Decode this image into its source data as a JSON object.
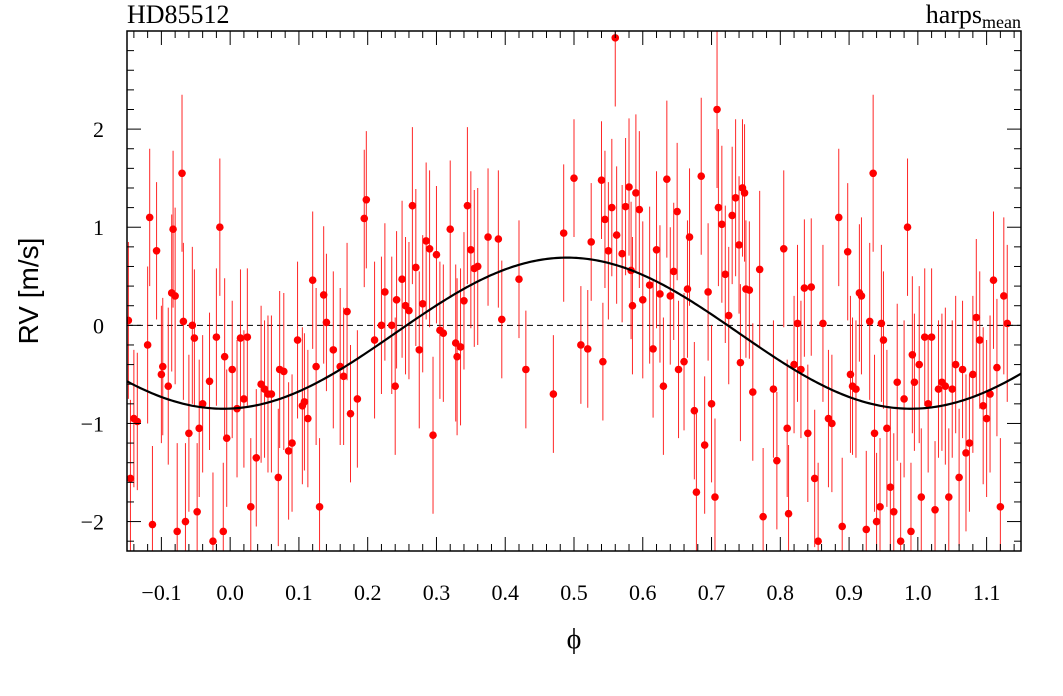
{
  "chart_data": {
    "type": "scatter",
    "title_left": "HD85512",
    "title_right": {
      "main": "harps",
      "sub": "mean"
    },
    "xlabel": "ϕ",
    "ylabel": "RV [m/s]",
    "xlim": [
      -0.15,
      1.15
    ],
    "ylim": [
      -2.3,
      3.0
    ],
    "x_ticks": [
      -0.1,
      0.0,
      0.1,
      0.2,
      0.3,
      0.4,
      0.5,
      0.6,
      0.7,
      0.8,
      0.9,
      1.0,
      1.1
    ],
    "x_tick_labels": [
      "−0.1",
      "0.0",
      "0.1",
      "0.2",
      "0.3",
      "0.4",
      "0.5",
      "0.6",
      "0.7",
      "0.8",
      "0.9",
      "1.0",
      "1.1"
    ],
    "y_ticks": [
      -2,
      -1,
      0,
      1,
      2
    ],
    "y_tick_labels": [
      "−2",
      "−1",
      "0",
      "1",
      "2"
    ],
    "zero_line": 0,
    "grid": false,
    "model": {
      "type": "sinusoid",
      "amplitude": 0.77,
      "offset": -0.08,
      "peak_phase": 0.49,
      "color": "#000000"
    },
    "series": [
      {
        "color": "#ff0000",
        "points": [
          [
            -0.148,
            0.05,
            0.8
          ],
          [
            -0.145,
            -1.56,
            0.8
          ],
          [
            -0.14,
            -0.95,
            0.7
          ],
          [
            -0.135,
            -0.98,
            0.7
          ],
          [
            -0.12,
            -0.2,
            0.8
          ],
          [
            -0.117,
            1.1,
            0.7
          ],
          [
            -0.113,
            -2.03,
            0.8
          ],
          [
            -0.107,
            0.76,
            0.7
          ],
          [
            -0.1,
            -0.5,
            0.7
          ],
          [
            -0.098,
            -0.42,
            0.7
          ],
          [
            -0.09,
            -0.62,
            0.8
          ],
          [
            -0.085,
            0.33,
            0.8
          ],
          [
            -0.083,
            0.98,
            0.8
          ],
          [
            -0.08,
            0.3,
            0.9
          ],
          [
            -0.077,
            -2.1,
            0.9
          ],
          [
            -0.07,
            1.55,
            0.8
          ],
          [
            -0.068,
            0.04,
            0.8
          ],
          [
            -0.065,
            -2.0,
            0.8
          ],
          [
            -0.06,
            -1.1,
            0.8
          ],
          [
            -0.055,
            0.0,
            0.8
          ],
          [
            -0.052,
            -0.13,
            0.7
          ],
          [
            -0.048,
            -1.9,
            0.7
          ],
          [
            -0.045,
            -1.05,
            0.7
          ],
          [
            -0.04,
            -0.8,
            0.7
          ],
          [
            -0.03,
            -0.57,
            0.7
          ],
          [
            -0.025,
            -2.2,
            0.7
          ],
          [
            -0.02,
            -0.12,
            0.7
          ],
          [
            -0.015,
            1.0,
            0.7
          ],
          [
            -0.01,
            -2.1,
            0.7
          ],
          [
            -0.008,
            -0.32,
            0.8
          ],
          [
            -0.005,
            -1.15,
            0.7
          ],
          [
            0.003,
            -0.45,
            0.7
          ],
          [
            0.01,
            -0.85,
            0.7
          ],
          [
            0.015,
            -0.13,
            0.7
          ],
          [
            0.02,
            -0.75,
            0.7
          ],
          [
            0.025,
            -0.12,
            0.7
          ],
          [
            0.03,
            -1.85,
            0.7
          ],
          [
            0.038,
            -1.35,
            0.7
          ],
          [
            0.045,
            -0.6,
            0.8
          ],
          [
            0.05,
            -0.65,
            0.7
          ],
          [
            0.055,
            -0.7,
            0.8
          ],
          [
            0.06,
            -0.7,
            0.8
          ],
          [
            0.07,
            -1.55,
            0.7
          ],
          [
            0.072,
            -0.45,
            0.8
          ],
          [
            0.078,
            -0.47,
            0.8
          ],
          [
            0.085,
            -1.28,
            0.7
          ],
          [
            0.09,
            -1.2,
            0.7
          ],
          [
            0.098,
            -0.15,
            0.8
          ],
          [
            0.105,
            -0.82,
            0.8
          ],
          [
            0.108,
            -0.78,
            0.7
          ],
          [
            0.113,
            -0.95,
            0.7
          ],
          [
            0.12,
            0.46,
            0.7
          ],
          [
            0.125,
            -0.42,
            0.8
          ],
          [
            0.13,
            -1.85,
            0.7
          ],
          [
            0.136,
            0.31,
            0.7
          ],
          [
            0.14,
            0.03,
            0.7
          ],
          [
            0.15,
            -0.25,
            0.8
          ],
          [
            0.16,
            -0.42,
            0.8
          ],
          [
            0.165,
            -0.52,
            0.7
          ],
          [
            0.17,
            0.14,
            0.7
          ],
          [
            0.175,
            -0.9,
            0.7
          ],
          [
            0.185,
            -0.75,
            0.7
          ],
          [
            0.195,
            1.09,
            0.7
          ],
          [
            0.198,
            1.28,
            0.7
          ],
          [
            0.21,
            -0.15,
            0.8
          ],
          [
            0.22,
            0.0,
            0.7
          ],
          [
            0.225,
            0.34,
            0.7
          ],
          [
            0.235,
            0.0,
            0.7
          ],
          [
            0.24,
            -0.62,
            0.7
          ],
          [
            0.242,
            0.26,
            0.7
          ],
          [
            0.25,
            0.47,
            0.8
          ],
          [
            0.255,
            0.2,
            0.7
          ],
          [
            0.26,
            0.15,
            0.7
          ],
          [
            0.265,
            1.22,
            0.8
          ],
          [
            0.27,
            0.59,
            0.8
          ],
          [
            0.275,
            -0.25,
            0.8
          ],
          [
            0.28,
            0.22,
            0.7
          ],
          [
            0.285,
            0.86,
            0.8
          ],
          [
            0.29,
            0.78,
            0.8
          ],
          [
            0.295,
            -1.12,
            0.8
          ],
          [
            0.3,
            0.72,
            0.7
          ],
          [
            0.305,
            -0.05,
            0.7
          ],
          [
            0.31,
            -0.08,
            0.7
          ],
          [
            0.32,
            0.98,
            0.7
          ],
          [
            0.328,
            -0.18,
            0.8
          ],
          [
            0.33,
            -0.32,
            0.8
          ],
          [
            0.335,
            -0.22,
            0.8
          ],
          [
            0.34,
            0.25,
            0.7
          ],
          [
            0.345,
            1.22,
            0.8
          ],
          [
            0.35,
            0.77,
            0.8
          ],
          [
            0.355,
            0.58,
            0.8
          ],
          [
            0.36,
            0.6,
            0.8
          ],
          [
            0.375,
            0.9,
            0.7
          ],
          [
            0.39,
            0.88,
            0.7
          ],
          [
            0.395,
            0.06,
            0.6
          ],
          [
            0.42,
            0.47,
            0.6
          ],
          [
            0.43,
            -0.45,
            0.6
          ],
          [
            0.47,
            -0.7,
            0.6
          ],
          [
            0.485,
            0.94,
            0.7
          ],
          [
            0.5,
            1.5,
            0.6
          ],
          [
            0.51,
            -0.2,
            0.6
          ],
          [
            0.52,
            -0.24,
            0.6
          ],
          [
            0.525,
            0.85,
            0.6
          ],
          [
            0.54,
            1.48,
            0.6
          ],
          [
            0.542,
            -0.37,
            0.6
          ],
          [
            0.545,
            1.08,
            0.7
          ],
          [
            0.55,
            0.76,
            0.7
          ],
          [
            0.555,
            1.2,
            0.7
          ],
          [
            0.56,
            2.93,
            0.7
          ],
          [
            0.562,
            0.92,
            0.7
          ],
          [
            0.57,
            0.73,
            0.7
          ],
          [
            0.575,
            1.21,
            0.7
          ],
          [
            0.58,
            1.41,
            0.7
          ],
          [
            0.583,
            0.56,
            0.7
          ],
          [
            0.585,
            0.2,
            0.7
          ],
          [
            0.59,
            1.35,
            0.8
          ],
          [
            0.595,
            1.18,
            0.8
          ],
          [
            0.6,
            0.26,
            0.8
          ],
          [
            0.61,
            0.41,
            0.8
          ],
          [
            0.615,
            -0.24,
            0.7
          ],
          [
            0.62,
            0.77,
            0.8
          ],
          [
            0.625,
            0.32,
            0.7
          ],
          [
            0.63,
            -0.62,
            0.7
          ],
          [
            0.635,
            1.49,
            0.8
          ],
          [
            0.64,
            0.3,
            0.7
          ],
          [
            0.645,
            0.55,
            0.7
          ],
          [
            0.65,
            1.16,
            0.7
          ],
          [
            0.652,
            -0.45,
            0.7
          ],
          [
            0.66,
            -0.37,
            0.7
          ],
          [
            0.665,
            0.37,
            0.7
          ],
          [
            0.668,
            0.9,
            0.7
          ],
          [
            0.675,
            -0.87,
            0.7
          ],
          [
            0.678,
            -1.7,
            0.8
          ],
          [
            0.685,
            1.52,
            0.8
          ],
          [
            0.69,
            -1.22,
            0.7
          ],
          [
            0.695,
            0.34,
            0.7
          ],
          [
            0.7,
            -0.8,
            0.8
          ],
          [
            0.705,
            -1.75,
            0.8
          ],
          [
            0.708,
            2.2,
            0.8
          ],
          [
            0.71,
            1.2,
            0.8
          ],
          [
            0.715,
            1.03,
            0.8
          ],
          [
            0.72,
            0.52,
            0.7
          ],
          [
            0.725,
            0.1,
            0.7
          ],
          [
            0.73,
            1.12,
            0.7
          ],
          [
            0.735,
            1.3,
            0.8
          ],
          [
            0.74,
            0.82,
            0.7
          ],
          [
            0.742,
            -0.38,
            0.8
          ],
          [
            0.745,
            1.4,
            0.7
          ],
          [
            0.748,
            1.35,
            0.7
          ],
          [
            0.75,
            0.37,
            0.7
          ],
          [
            0.755,
            0.36,
            0.7
          ],
          [
            0.76,
            -0.68,
            0.7
          ],
          [
            0.77,
            0.57,
            0.8
          ],
          [
            0.775,
            -1.95,
            0.7
          ],
          [
            0.79,
            -0.65,
            0.7
          ],
          [
            0.795,
            -1.38,
            0.7
          ],
          [
            0.805,
            0.78,
            0.8
          ],
          [
            0.81,
            -1.05,
            0.7
          ],
          [
            0.812,
            -1.92,
            0.7
          ],
          [
            0.82,
            -0.4,
            0.7
          ],
          [
            0.825,
            0.02,
            0.8
          ],
          [
            0.83,
            -0.45,
            0.7
          ],
          [
            0.835,
            0.38,
            0.7
          ],
          [
            0.84,
            -1.1,
            0.7
          ],
          [
            0.845,
            0.39,
            0.7
          ],
          [
            0.85,
            -1.56,
            0.7
          ],
          [
            0.855,
            -2.2,
            0.8
          ],
          [
            0.862,
            0.02,
            0.8
          ],
          [
            0.87,
            -0.95,
            0.7
          ],
          [
            0.875,
            -1.0,
            0.7
          ],
          [
            0.885,
            1.1,
            0.7
          ],
          [
            0.89,
            -2.05,
            0.7
          ],
          [
            0.898,
            0.75,
            0.7
          ],
          [
            0.902,
            -0.5,
            0.8
          ],
          [
            0.905,
            -0.62,
            0.7
          ],
          [
            0.91,
            -0.65,
            0.7
          ],
          [
            0.915,
            0.33,
            0.7
          ],
          [
            0.918,
            0.3,
            0.8
          ],
          [
            0.925,
            -2.08,
            0.8
          ],
          [
            0.93,
            0.04,
            0.8
          ],
          [
            0.935,
            1.55,
            0.8
          ],
          [
            0.937,
            -1.1,
            0.8
          ],
          [
            0.94,
            -2.0,
            0.7
          ],
          [
            0.945,
            -1.85,
            0.7
          ],
          [
            0.947,
            0.02,
            0.8
          ],
          [
            0.95,
            -0.15,
            0.7
          ],
          [
            0.955,
            -1.05,
            0.8
          ],
          [
            0.96,
            -1.65,
            0.8
          ],
          [
            0.965,
            -1.9,
            0.8
          ],
          [
            0.97,
            -0.58,
            0.8
          ],
          [
            0.975,
            -2.2,
            0.8
          ],
          [
            0.98,
            -0.75,
            0.8
          ],
          [
            0.985,
            1.0,
            0.7
          ],
          [
            0.99,
            -2.1,
            0.7
          ],
          [
            0.992,
            -0.3,
            0.8
          ],
          [
            0.995,
            -0.58,
            0.7
          ],
          [
            1.002,
            -0.4,
            0.8
          ],
          [
            1.005,
            -1.75,
            0.7
          ],
          [
            1.01,
            -0.12,
            0.7
          ],
          [
            1.015,
            -0.8,
            0.7
          ],
          [
            1.02,
            -0.12,
            0.7
          ],
          [
            1.025,
            -1.88,
            0.7
          ],
          [
            1.03,
            -0.65,
            0.7
          ],
          [
            1.035,
            -0.58,
            0.7
          ],
          [
            1.04,
            -0.62,
            0.8
          ],
          [
            1.045,
            -1.75,
            0.7
          ],
          [
            1.05,
            -0.65,
            0.7
          ],
          [
            1.055,
            -0.4,
            0.7
          ],
          [
            1.06,
            -1.55,
            0.7
          ],
          [
            1.065,
            -0.45,
            0.7
          ],
          [
            1.07,
            -1.3,
            0.8
          ],
          [
            1.075,
            -1.2,
            0.7
          ],
          [
            1.08,
            -0.5,
            0.8
          ],
          [
            1.085,
            0.08,
            0.8
          ],
          [
            1.09,
            -0.15,
            0.7
          ],
          [
            1.095,
            -0.82,
            0.8
          ],
          [
            1.1,
            -0.95,
            0.8
          ],
          [
            1.105,
            -0.7,
            0.8
          ],
          [
            1.11,
            0.46,
            0.7
          ],
          [
            1.115,
            -0.43,
            0.7
          ],
          [
            1.12,
            -1.85,
            0.7
          ],
          [
            1.125,
            0.3,
            0.8
          ],
          [
            1.13,
            0.02,
            0.8
          ]
        ]
      }
    ]
  }
}
